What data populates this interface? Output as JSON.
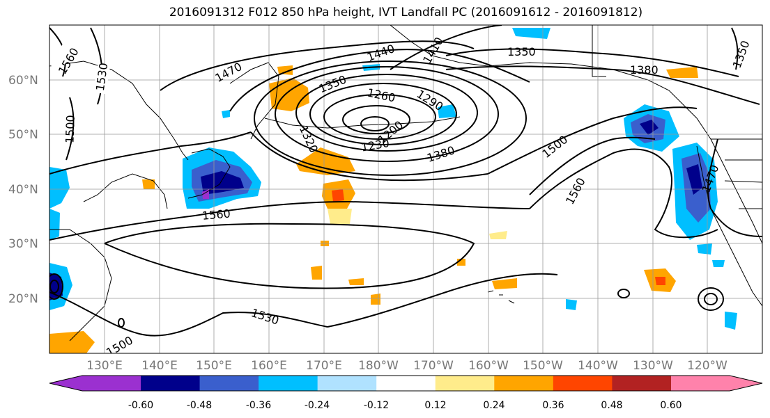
{
  "title": "2016091312 F012 850 hPa height, IVT Landfall PC (2016091612 - 2016091812)",
  "lat_labels": [
    "60°N",
    "50°N",
    "40°N",
    "30°N",
    "20°N"
  ],
  "lon_labels": [
    "130°E",
    "140°E",
    "150°E",
    "160°E",
    "170°E",
    "180°W",
    "170°W",
    "160°W",
    "150°W",
    "140°W",
    "130°W",
    "120°W"
  ],
  "contour_labels": [
    "1560",
    "1530",
    "1500",
    "1470",
    "1440",
    "1410",
    "1350",
    "1380",
    "1350",
    "1260",
    "1290",
    "1350",
    "1320",
    "1230",
    "1200",
    "1380",
    "1500",
    "1560",
    "1560",
    "1470",
    "1530",
    "1500"
  ],
  "colorbar": {
    "ticks": [
      "-0.60",
      "-0.48",
      "-0.36",
      "-0.24",
      "-0.12",
      "0.12",
      "0.24",
      "0.36",
      "0.48",
      "0.60"
    ],
    "colors": [
      "#9b30d0",
      "#00008b",
      "#3a5fcd",
      "#00bfff",
      "#b0e2ff",
      "#ffffff",
      "#ffec8b",
      "#ffa500",
      "#ff4500",
      "#b22222",
      "#ff82ab"
    ]
  }
}
